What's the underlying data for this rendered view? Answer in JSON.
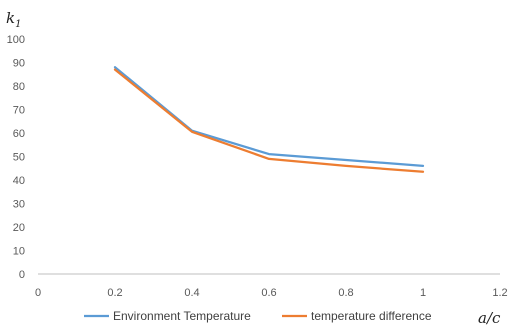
{
  "chart_data": {
    "type": "line",
    "title": "",
    "xlabel": "a/c",
    "ylabel_main": "k",
    "ylabel_sub": "1",
    "xlim": [
      0,
      1.2
    ],
    "ylim": [
      0,
      100
    ],
    "x_ticks": [
      "0",
      "0.2",
      "0.4",
      "0.6",
      "0.8",
      "1",
      "1.2"
    ],
    "y_ticks": [
      "0",
      "10",
      "20",
      "30",
      "40",
      "50",
      "60",
      "70",
      "80",
      "90",
      "100"
    ],
    "grid": false,
    "legend_position": "bottom",
    "series": [
      {
        "name": "Environment Temperature",
        "color": "#5B9BD5",
        "x": [
          0.2,
          0.4,
          0.6,
          0.8,
          1.0
        ],
        "y": [
          88,
          61,
          51,
          48.5,
          46
        ]
      },
      {
        "name": "temperature difference",
        "color": "#ED7D31",
        "x": [
          0.2,
          0.4,
          0.6,
          0.8,
          1.0
        ],
        "y": [
          87,
          60.5,
          49,
          46,
          43.5
        ]
      }
    ]
  }
}
